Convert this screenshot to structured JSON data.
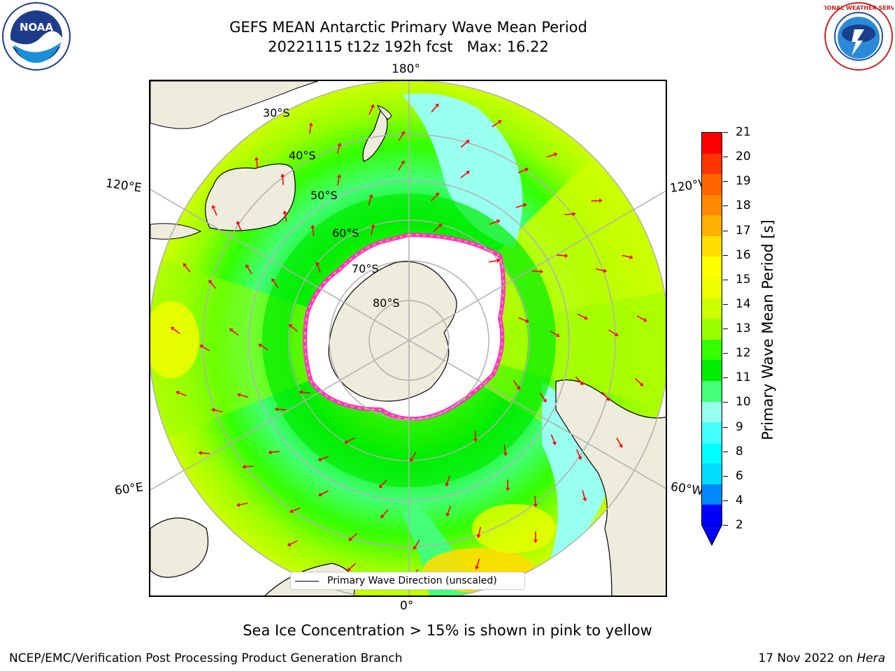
{
  "header": {
    "title_line1": "GEFS MEAN Antarctic Primary Wave Mean Period",
    "title_line2": "20221115 t12z 192h fcst   Max: 16.22"
  },
  "map": {
    "projection": "south-polar-stereographic",
    "longitude_labels": {
      "top": "180°",
      "bottom": "0°",
      "upper_left": "120°E",
      "upper_right": "120°W",
      "lower_left": "60°E",
      "lower_right": "60°W"
    },
    "latitude_labels": [
      "30°S",
      "40°S",
      "50°S",
      "60°S",
      "70°S",
      "80°S"
    ],
    "legend_label": "Primary Wave Direction (unscaled)",
    "colors": {
      "land": "#eeecdc",
      "ice_shelf": "#ffffff",
      "sea_ice_edge": [
        "#ff33cc",
        "#ffb347"
      ],
      "arrow": "#ff0000",
      "graticule": "#b0b0b0"
    }
  },
  "colorbar": {
    "label": "Primary Wave Mean Period [s]",
    "ticks": [
      "21",
      "20",
      "19",
      "18",
      "17",
      "16",
      "15",
      "14",
      "13",
      "12",
      "11",
      "10",
      "9",
      "8",
      "6",
      "4",
      "2"
    ],
    "colors": [
      "#ff0000",
      "#ff3300",
      "#ff6600",
      "#ff8800",
      "#ffb000",
      "#ffdd00",
      "#ffff00",
      "#eeff00",
      "#ccff00",
      "#99ff00",
      "#33ff00",
      "#00ee00",
      "#44ff77",
      "#99ffee",
      "#44ffff",
      "#00ffff",
      "#00ddff",
      "#0088ff",
      "#0000ff"
    ]
  },
  "caption": "Sea Ice Concentration > 15% is shown in pink to yellow",
  "footer": {
    "left": "NCEP/EMC/Verification Post Processing Product Generation Branch",
    "right_date": "17 Nov 2022 on ",
    "right_host": "Hera"
  },
  "logos": {
    "noaa_text": "NOAA",
    "nws_text": "NATIONAL WEATHER SERVICE"
  }
}
